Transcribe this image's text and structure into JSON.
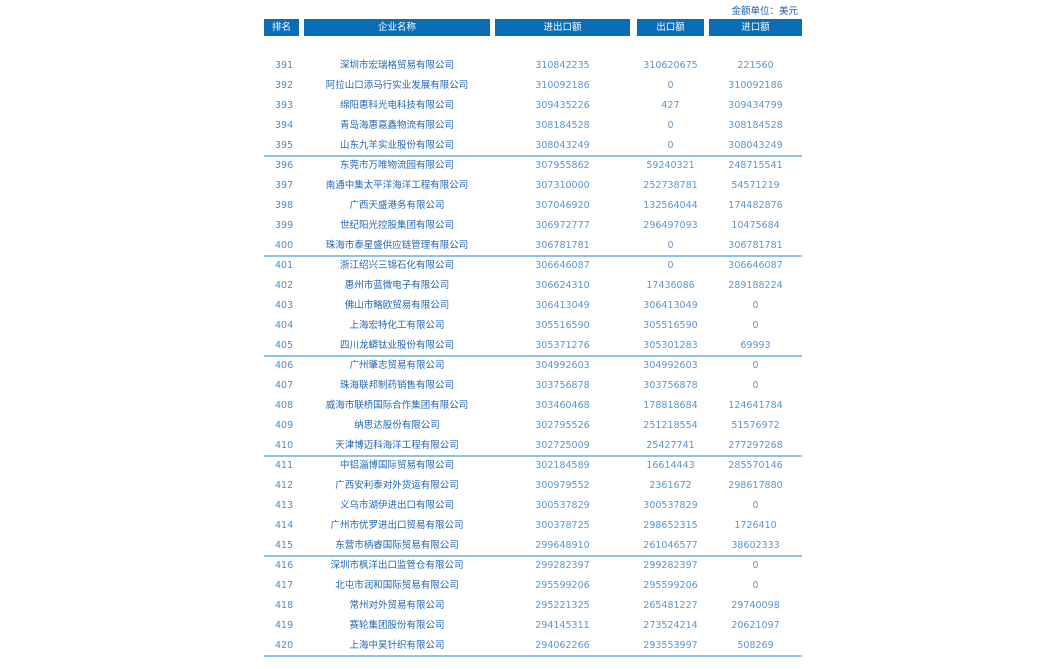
{
  "unit_label": "金额单位：美元",
  "headers": {
    "rank": "排名",
    "name": "企业名称",
    "total": "进出口额",
    "export": "出口额",
    "import": "进口额"
  },
  "rows": [
    {
      "rank": "391",
      "name": "深圳市宏瑞格贸易有限公司",
      "total": "310842235",
      "export": "310620675",
      "import": "221560"
    },
    {
      "rank": "392",
      "name": "阿拉山口添马行实业发展有限公司",
      "total": "310092186",
      "export": "0",
      "import": "310092186"
    },
    {
      "rank": "393",
      "name": "绵阳惠科光电科技有限公司",
      "total": "309435226",
      "export": "427",
      "import": "309434799"
    },
    {
      "rank": "394",
      "name": "青岛海惠嘉鑫物流有限公司",
      "total": "308184528",
      "export": "0",
      "import": "308184528"
    },
    {
      "rank": "395",
      "name": "山东九羊实业股份有限公司",
      "total": "308043249",
      "export": "0",
      "import": "308043249"
    },
    {
      "rank": "396",
      "name": "东莞市万唯物流园有限公司",
      "total": "307955862",
      "export": "59240321",
      "import": "248715541"
    },
    {
      "rank": "397",
      "name": "南通中集太平洋海洋工程有限公司",
      "total": "307310000",
      "export": "252738781",
      "import": "54571219"
    },
    {
      "rank": "398",
      "name": "广西天盛港务有限公司",
      "total": "307046920",
      "export": "132564044",
      "import": "174482876"
    },
    {
      "rank": "399",
      "name": "世纪阳光控股集团有限公司",
      "total": "306972777",
      "export": "296497093",
      "import": "10475684"
    },
    {
      "rank": "400",
      "name": "珠海市泰星盛供应链管理有限公司",
      "total": "306781781",
      "export": "0",
      "import": "306781781"
    },
    {
      "rank": "401",
      "name": "浙江绍兴三锦石化有限公司",
      "total": "306646087",
      "export": "0",
      "import": "306646087"
    },
    {
      "rank": "402",
      "name": "惠州市蓝微电子有限公司",
      "total": "306624310",
      "export": "17436086",
      "import": "289188224"
    },
    {
      "rank": "403",
      "name": "佛山市略欧贸易有限公司",
      "total": "306413049",
      "export": "306413049",
      "import": "0"
    },
    {
      "rank": "404",
      "name": "上海宏特化工有限公司",
      "total": "305516590",
      "export": "305516590",
      "import": "0"
    },
    {
      "rank": "405",
      "name": "四川龙蟒钛业股份有限公司",
      "total": "305371276",
      "export": "305301283",
      "import": "69993"
    },
    {
      "rank": "406",
      "name": "广州肇志贸易有限公司",
      "total": "304992603",
      "export": "304992603",
      "import": "0"
    },
    {
      "rank": "407",
      "name": "珠海联邦制药销售有限公司",
      "total": "303756878",
      "export": "303756878",
      "import": "0"
    },
    {
      "rank": "408",
      "name": "威海市联桥国际合作集团有限公司",
      "total": "303460468",
      "export": "178818684",
      "import": "124641784"
    },
    {
      "rank": "409",
      "name": "纳思达股份有限公司",
      "total": "302795526",
      "export": "251218554",
      "import": "51576972"
    },
    {
      "rank": "410",
      "name": "天津博迈科海洋工程有限公司",
      "total": "302725009",
      "export": "25427741",
      "import": "277297268"
    },
    {
      "rank": "411",
      "name": "中铝淄博国际贸易有限公司",
      "total": "302184589",
      "export": "16614443",
      "import": "285570146"
    },
    {
      "rank": "412",
      "name": "广西安利泰对外货运有限公司",
      "total": "300979552",
      "export": "2361672",
      "import": "298617880"
    },
    {
      "rank": "413",
      "name": "义乌市湖伊进出口有限公司",
      "total": "300537829",
      "export": "300537829",
      "import": "0"
    },
    {
      "rank": "414",
      "name": "广州市优罗进出口贸易有限公司",
      "total": "300378725",
      "export": "298652315",
      "import": "1726410"
    },
    {
      "rank": "415",
      "name": "东营市柄睿国际贸易有限公司",
      "total": "299648910",
      "export": "261046577",
      "import": "38602333"
    },
    {
      "rank": "416",
      "name": "深圳市枫洋出口监管仓有限公司",
      "total": "299282397",
      "export": "299282397",
      "import": "0"
    },
    {
      "rank": "417",
      "name": "北屯市润和国际贸易有限公司",
      "total": "295599206",
      "export": "295599206",
      "import": "0"
    },
    {
      "rank": "418",
      "name": "常州对外贸易有限公司",
      "total": "295221325",
      "export": "265481227",
      "import": "29740098"
    },
    {
      "rank": "419",
      "name": "赛轮集团股份有限公司",
      "total": "294145311",
      "export": "273524214",
      "import": "20621097"
    },
    {
      "rank": "420",
      "name": "上海中昊针织有限公司",
      "total": "294062266",
      "export": "293553997",
      "import": "508269"
    }
  ]
}
